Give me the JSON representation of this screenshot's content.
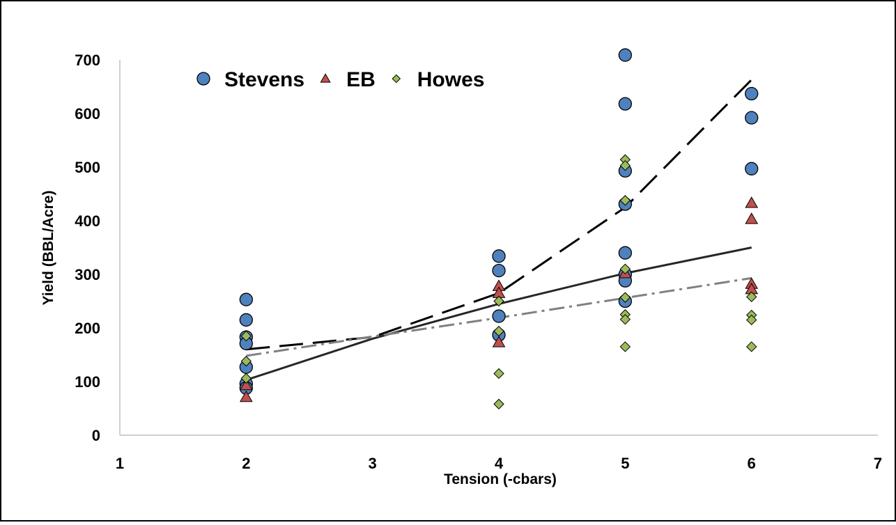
{
  "chart_data": {
    "type": "scatter",
    "title": "",
    "xlabel": "Tension (-cbars)",
    "ylabel": "Yield (BBL/Acre)",
    "xlim": [
      1,
      7
    ],
    "ylim": [
      0,
      700
    ],
    "x_ticks": [
      "1",
      "2",
      "3",
      "4",
      "5",
      "6",
      "7"
    ],
    "y_ticks": [
      "0",
      "100",
      "200",
      "300",
      "400",
      "500",
      "600",
      "700"
    ],
    "grid": false,
    "legend_position": "top-left",
    "series": [
      {
        "name": "Stevens",
        "marker": "circle",
        "color": "#4f81bd",
        "points": [
          [
            2,
            253
          ],
          [
            2,
            215
          ],
          [
            2,
            183
          ],
          [
            2,
            171
          ],
          [
            2,
            127
          ],
          [
            2,
            96
          ],
          [
            2,
            88
          ],
          [
            4,
            334
          ],
          [
            4,
            307
          ],
          [
            4,
            222
          ],
          [
            4,
            187
          ],
          [
            5,
            709
          ],
          [
            5,
            618
          ],
          [
            5,
            493
          ],
          [
            5,
            431
          ],
          [
            5,
            340
          ],
          [
            5,
            300
          ],
          [
            5,
            288
          ],
          [
            5,
            250
          ],
          [
            6,
            637
          ],
          [
            6,
            592
          ],
          [
            6,
            497
          ]
        ],
        "trendline": {
          "style": "long-dash",
          "color": "#000000",
          "points": [
            [
              2,
              160
            ],
            [
              3,
              183
            ],
            [
              4,
              265
            ],
            [
              5,
              425
            ],
            [
              6,
              663
            ]
          ]
        }
      },
      {
        "name": "EB",
        "marker": "triangle",
        "color": "#c0504d",
        "points": [
          [
            2,
            93
          ],
          [
            2,
            71
          ],
          [
            4,
            278
          ],
          [
            4,
            265
          ],
          [
            4,
            173
          ],
          [
            5,
            302
          ],
          [
            6,
            433
          ],
          [
            6,
            403
          ],
          [
            6,
            282
          ],
          [
            6,
            272
          ]
        ],
        "trendline": {
          "style": "solid",
          "color": "#262626",
          "points": [
            [
              2,
              103
            ],
            [
              3,
              180
            ],
            [
              4,
              245
            ],
            [
              5,
              302
            ],
            [
              6,
              350
            ]
          ]
        }
      },
      {
        "name": "Howes",
        "marker": "diamond",
        "color": "#9bbb59",
        "points": [
          [
            2,
            185
          ],
          [
            2,
            138
          ],
          [
            2,
            106
          ],
          [
            4,
            250
          ],
          [
            4,
            194
          ],
          [
            4,
            115
          ],
          [
            4,
            58
          ],
          [
            5,
            514
          ],
          [
            5,
            503
          ],
          [
            5,
            438
          ],
          [
            5,
            310
          ],
          [
            5,
            257
          ],
          [
            5,
            225
          ],
          [
            5,
            216
          ],
          [
            5,
            165
          ],
          [
            6,
            258
          ],
          [
            6,
            224
          ],
          [
            6,
            215
          ],
          [
            6,
            165
          ]
        ],
        "trendline": {
          "style": "dash-dot",
          "color": "#808080",
          "points": [
            [
              2,
              148
            ],
            [
              3,
              184
            ],
            [
              4,
              219
            ],
            [
              5,
              256
            ],
            [
              6,
              293
            ]
          ]
        }
      }
    ]
  }
}
